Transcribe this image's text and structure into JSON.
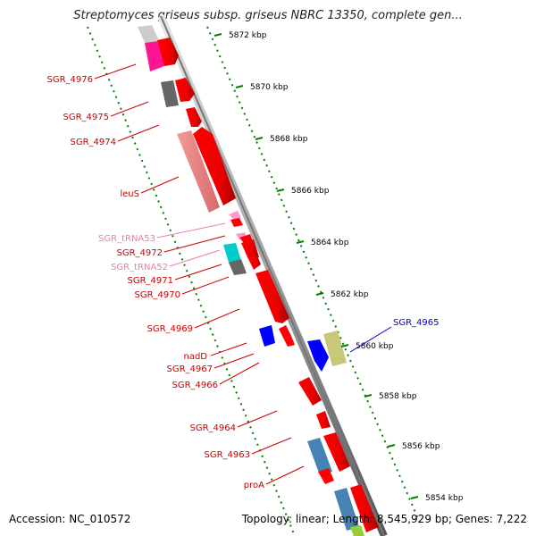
{
  "header": {
    "title": "Streptomyces griseus subsp. griseus NBRC 13350, complete gen..."
  },
  "footer": {
    "accession": "Accession: NC_010572",
    "summary": "Topology: linear; Length: 8,545,929 bp; Genes: 7,222"
  },
  "scale": {
    "ticks": [
      "5872 kbp",
      "5870 kbp",
      "5868 kbp",
      "5866 kbp",
      "5864 kbp",
      "5862 kbp",
      "5860 kbp",
      "5858 kbp",
      "5856 kbp",
      "5854 kbp"
    ]
  },
  "labels": [
    {
      "text": "SGR_4976",
      "color": "#cc0000"
    },
    {
      "text": "SGR_4975",
      "color": "#cc0000"
    },
    {
      "text": "SGR_4974",
      "color": "#cc0000"
    },
    {
      "text": "leuS",
      "color": "#cc0000"
    },
    {
      "text": "SGR_tRNA53",
      "color": "#e67fae"
    },
    {
      "text": "SGR_4972",
      "color": "#cc0000"
    },
    {
      "text": "SGR_tRNA52",
      "color": "#e67fae"
    },
    {
      "text": "SGR_4971",
      "color": "#cc0000"
    },
    {
      "text": "SGR_4970",
      "color": "#cc0000"
    },
    {
      "text": "SGR_4969",
      "color": "#cc0000"
    },
    {
      "text": "nadD",
      "color": "#cc0000"
    },
    {
      "text": "SGR_4967",
      "color": "#cc0000"
    },
    {
      "text": "SGR_4966",
      "color": "#cc0000"
    },
    {
      "text": "SGR_4964",
      "color": "#cc0000"
    },
    {
      "text": "SGR_4963",
      "color": "#cc0000"
    },
    {
      "text": "proA",
      "color": "#cc0000"
    },
    {
      "text": "SGR_4965",
      "color": "#0000cc"
    }
  ],
  "colors": {
    "gene_red": "#ff0000",
    "gene_pink": "#f08080",
    "trna_pink": "#ff88cc",
    "magenta": "#ff1493",
    "dark_gray": "#666666",
    "cyan": "#00cccc",
    "blue": "#0000ff",
    "steel_blue": "#4682b4",
    "olive": "#c8c878",
    "tick_green": "#008000"
  }
}
